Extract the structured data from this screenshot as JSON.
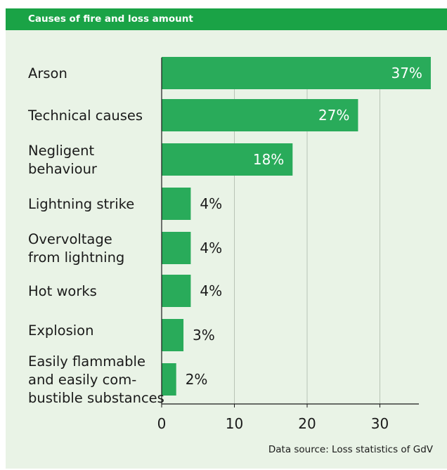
{
  "header": {
    "title": "Causes of fire and loss amount"
  },
  "source": "Data source: Loss statistics of GdV",
  "colors": {
    "bar": "#29ab5a",
    "header": "#1aa346",
    "panel": "#e9f3e6",
    "grid": "#b8c3b5"
  },
  "chart_data": {
    "type": "bar",
    "orientation": "horizontal",
    "title": "Causes of fire and loss amount",
    "categories": [
      "Arson",
      "Technical causes",
      "Negligent\nbehaviour",
      "Lightning strike",
      "Overvoltage\nfrom lightning",
      "Hot works",
      "Explosion",
      "Easily flammable\nand easily com-\nbustible substances"
    ],
    "values": [
      37,
      27,
      18,
      4,
      4,
      4,
      3,
      2
    ],
    "value_labels": [
      "37%",
      "27%",
      "18%",
      "4%",
      "4%",
      "4%",
      "3%",
      "2%"
    ],
    "xticks": [
      0,
      10,
      20,
      30
    ],
    "xlim": [
      0,
      35
    ],
    "grid": true,
    "xlabel": "",
    "ylabel": ""
  }
}
